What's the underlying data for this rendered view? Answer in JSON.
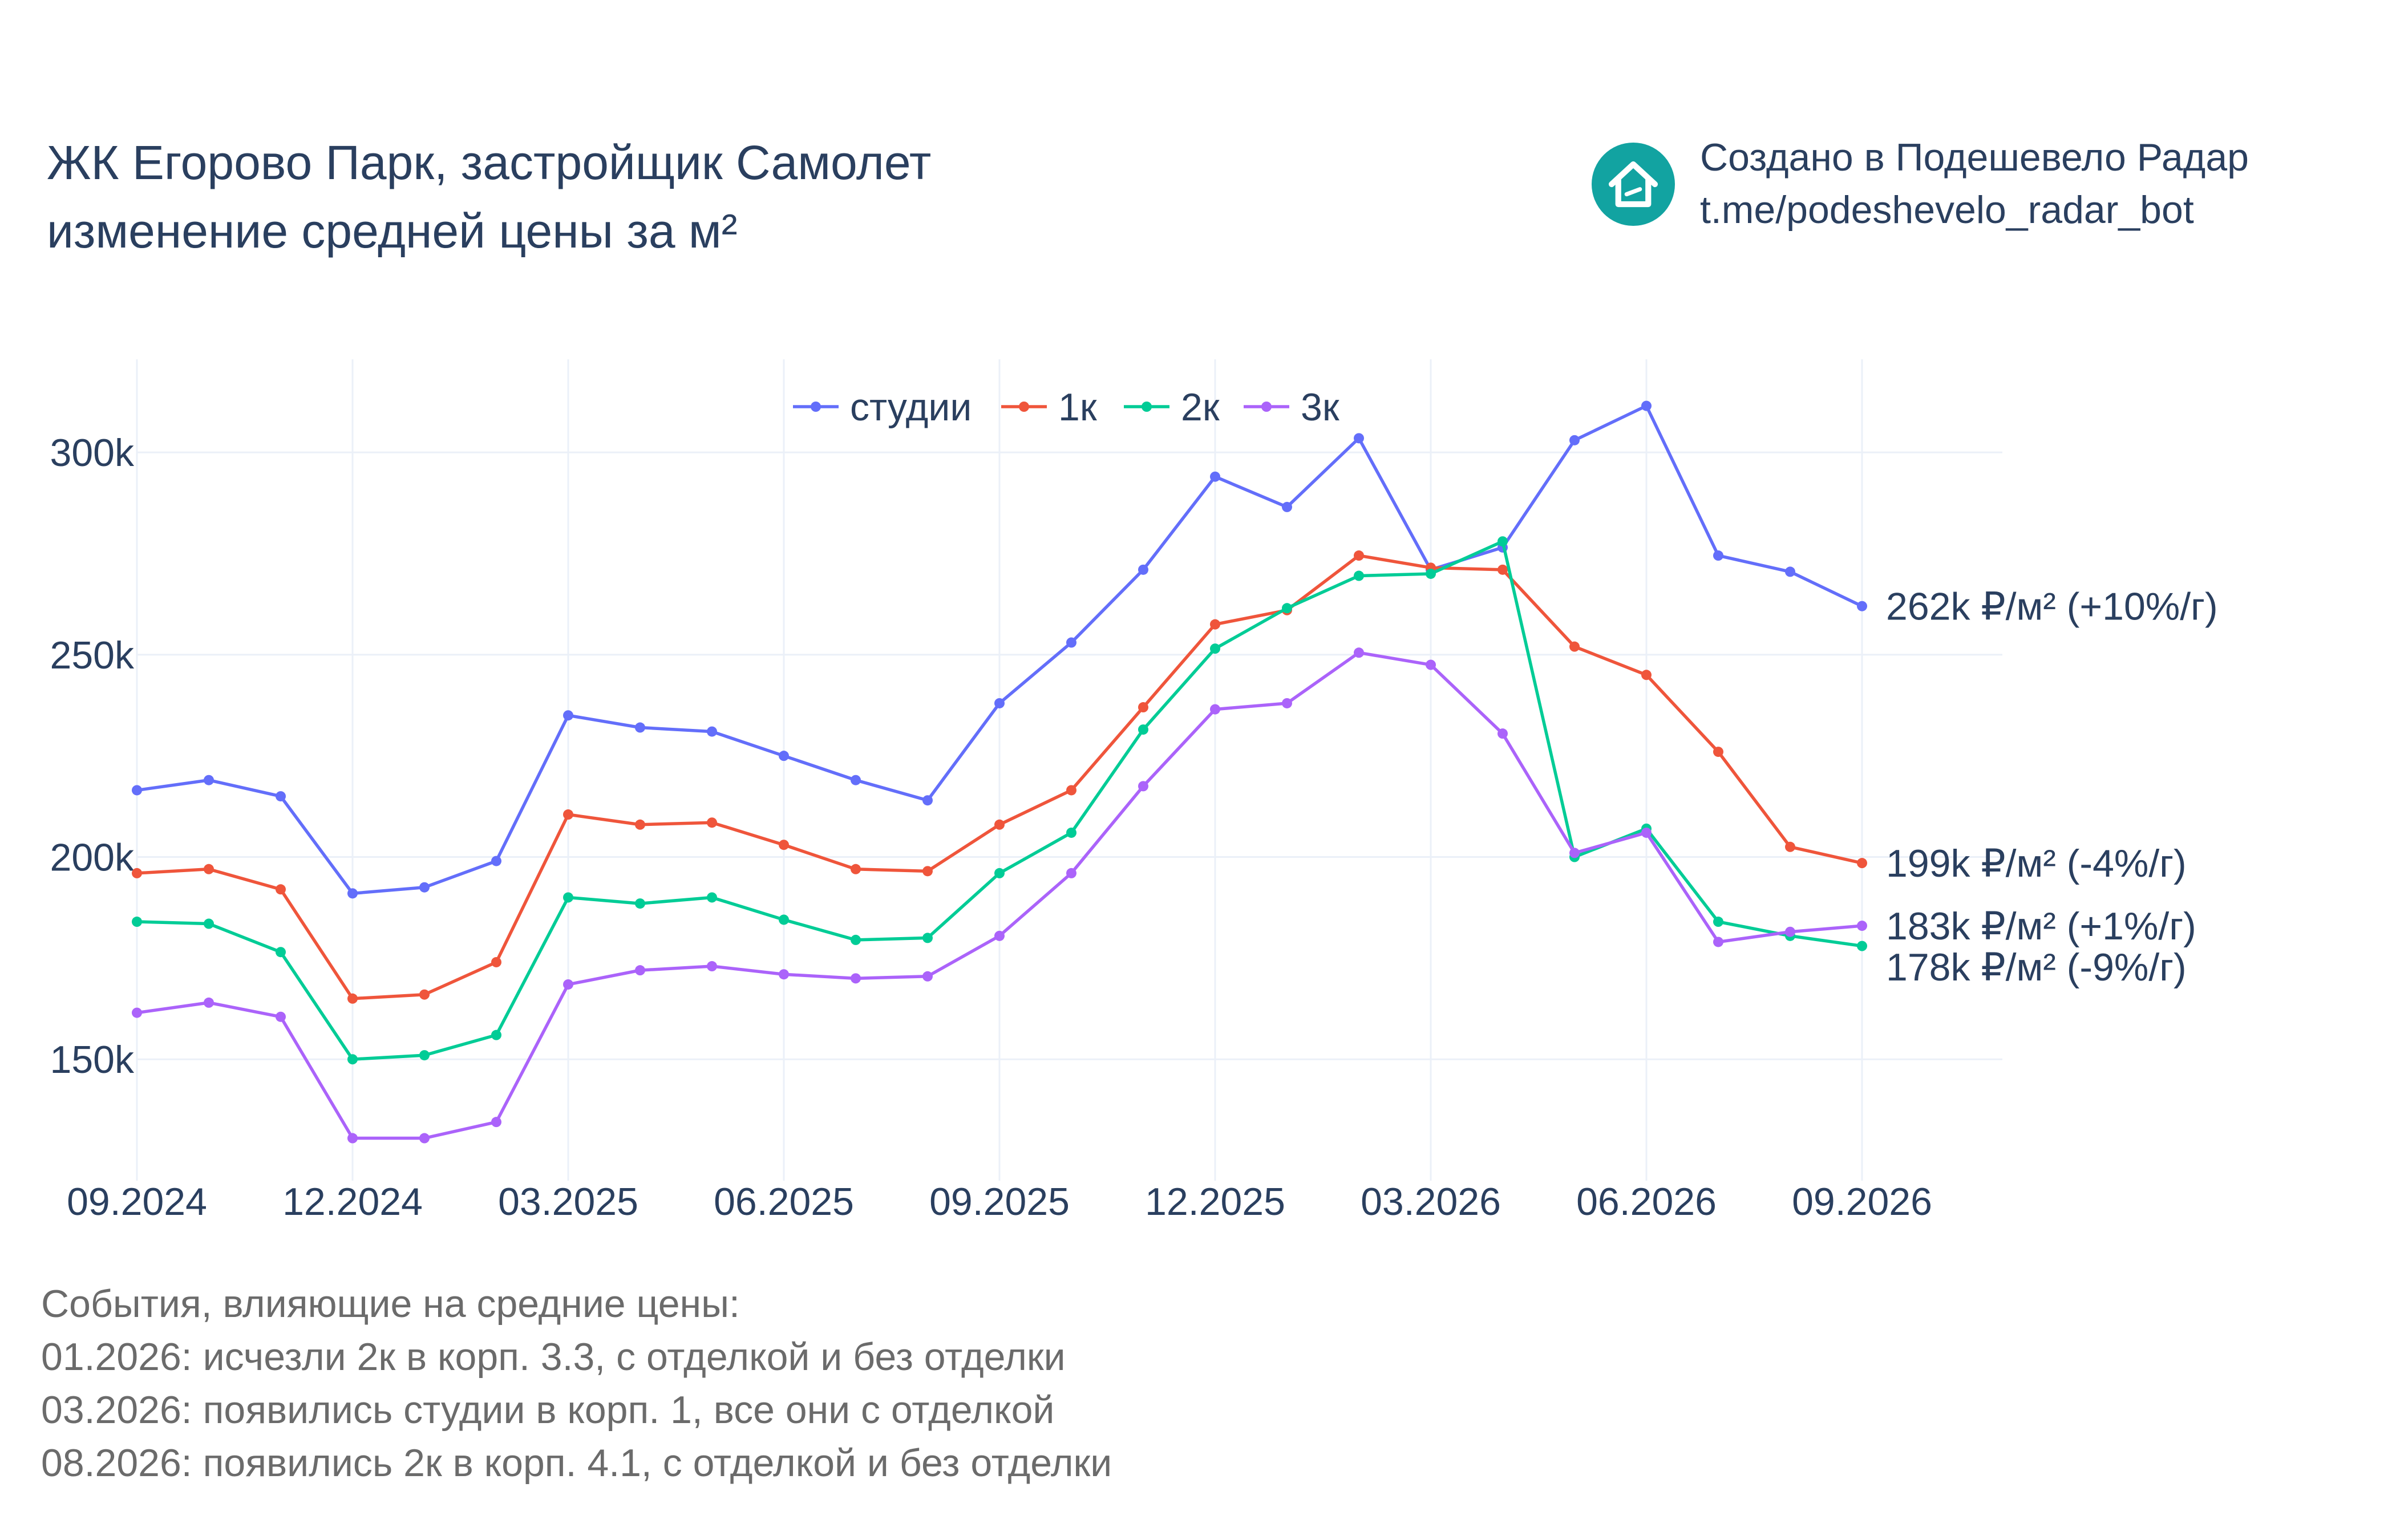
{
  "header": {
    "title_line1": "ЖК Егорово Парк, застройщик Самолет",
    "title_line2": "изменение средней цены за м²"
  },
  "brand": {
    "line1": "Создано в Подешевело Радар",
    "line2": "t.me/podeshevelo_radar_bot",
    "logo_icon": "house-icon",
    "logo_color": "#12a3a1"
  },
  "events": {
    "heading": "События, влияющие на средние цены:",
    "items": [
      "01.2026: исчезли 2к в корп. 3.3, с отделкой и без отделки",
      "03.2026: появились студии в корп. 1, все они с отделкой",
      "08.2026: появились 2к в корп. 4.1, с отделкой и без отделки"
    ]
  },
  "chart_data": {
    "type": "line",
    "x": [
      "09.2024",
      "10.2024",
      "11.2024",
      "12.2024",
      "01.2025",
      "02.2025",
      "03.2025",
      "04.2025",
      "05.2025",
      "06.2025",
      "07.2025",
      "08.2025",
      "09.2025",
      "10.2025",
      "11.2025",
      "12.2025",
      "01.2026",
      "02.2026",
      "03.2026",
      "04.2026",
      "05.2026",
      "06.2026",
      "07.2026",
      "08.2026",
      "09.2026"
    ],
    "x_tick_labels": [
      "09.2024",
      "12.2024",
      "03.2025",
      "06.2025",
      "09.2025",
      "12.2025",
      "03.2026",
      "06.2026",
      "09.2026"
    ],
    "y_ticks": [
      150000,
      200000,
      250000,
      300000
    ],
    "y_tick_labels": [
      "150k",
      "200k",
      "250k",
      "300k"
    ],
    "ylim": [
      120000,
      323000
    ],
    "grid": true,
    "legend_position": "top-center",
    "series": [
      {
        "name": "студии",
        "color": "#636efa",
        "values": [
          216500,
          219000,
          215000,
          191000,
          192500,
          199000,
          235000,
          232000,
          231000,
          225000,
          219000,
          214000,
          238000,
          253000,
          271000,
          294000,
          286500,
          303500,
          271000,
          276500,
          303000,
          311500,
          274500,
          270500,
          262000
        ],
        "end_label": "262k ₽/м² (+10%/г)"
      },
      {
        "name": "1к",
        "color": "#ef553b",
        "values": [
          196000,
          197000,
          192000,
          165000,
          166000,
          174000,
          210500,
          208000,
          208500,
          203000,
          197000,
          196500,
          208000,
          216500,
          237000,
          257500,
          261000,
          274500,
          271500,
          271000,
          252000,
          245000,
          226000,
          202500,
          198500
        ],
        "end_label": "199k ₽/м² (-4%/г)"
      },
      {
        "name": "2к",
        "color": "#00cc96",
        "values": [
          184000,
          183500,
          176500,
          150000,
          151000,
          156000,
          190000,
          188500,
          190000,
          184500,
          179500,
          180000,
          196000,
          206000,
          231500,
          251500,
          261500,
          269500,
          270000,
          278000,
          200000,
          207000,
          184000,
          180500,
          178000
        ],
        "end_label": "178k ₽/м² (-9%/г)"
      },
      {
        "name": "3к",
        "color": "#ab63fa",
        "values": [
          161500,
          164000,
          160500,
          130500,
          130500,
          134500,
          168500,
          172000,
          173000,
          171000,
          170000,
          170500,
          180500,
          196000,
          217500,
          236500,
          238000,
          250500,
          247500,
          230500,
          201000,
          206000,
          179000,
          181500,
          183000
        ],
        "end_label": "183k ₽/м² (+1%/г)"
      }
    ]
  }
}
